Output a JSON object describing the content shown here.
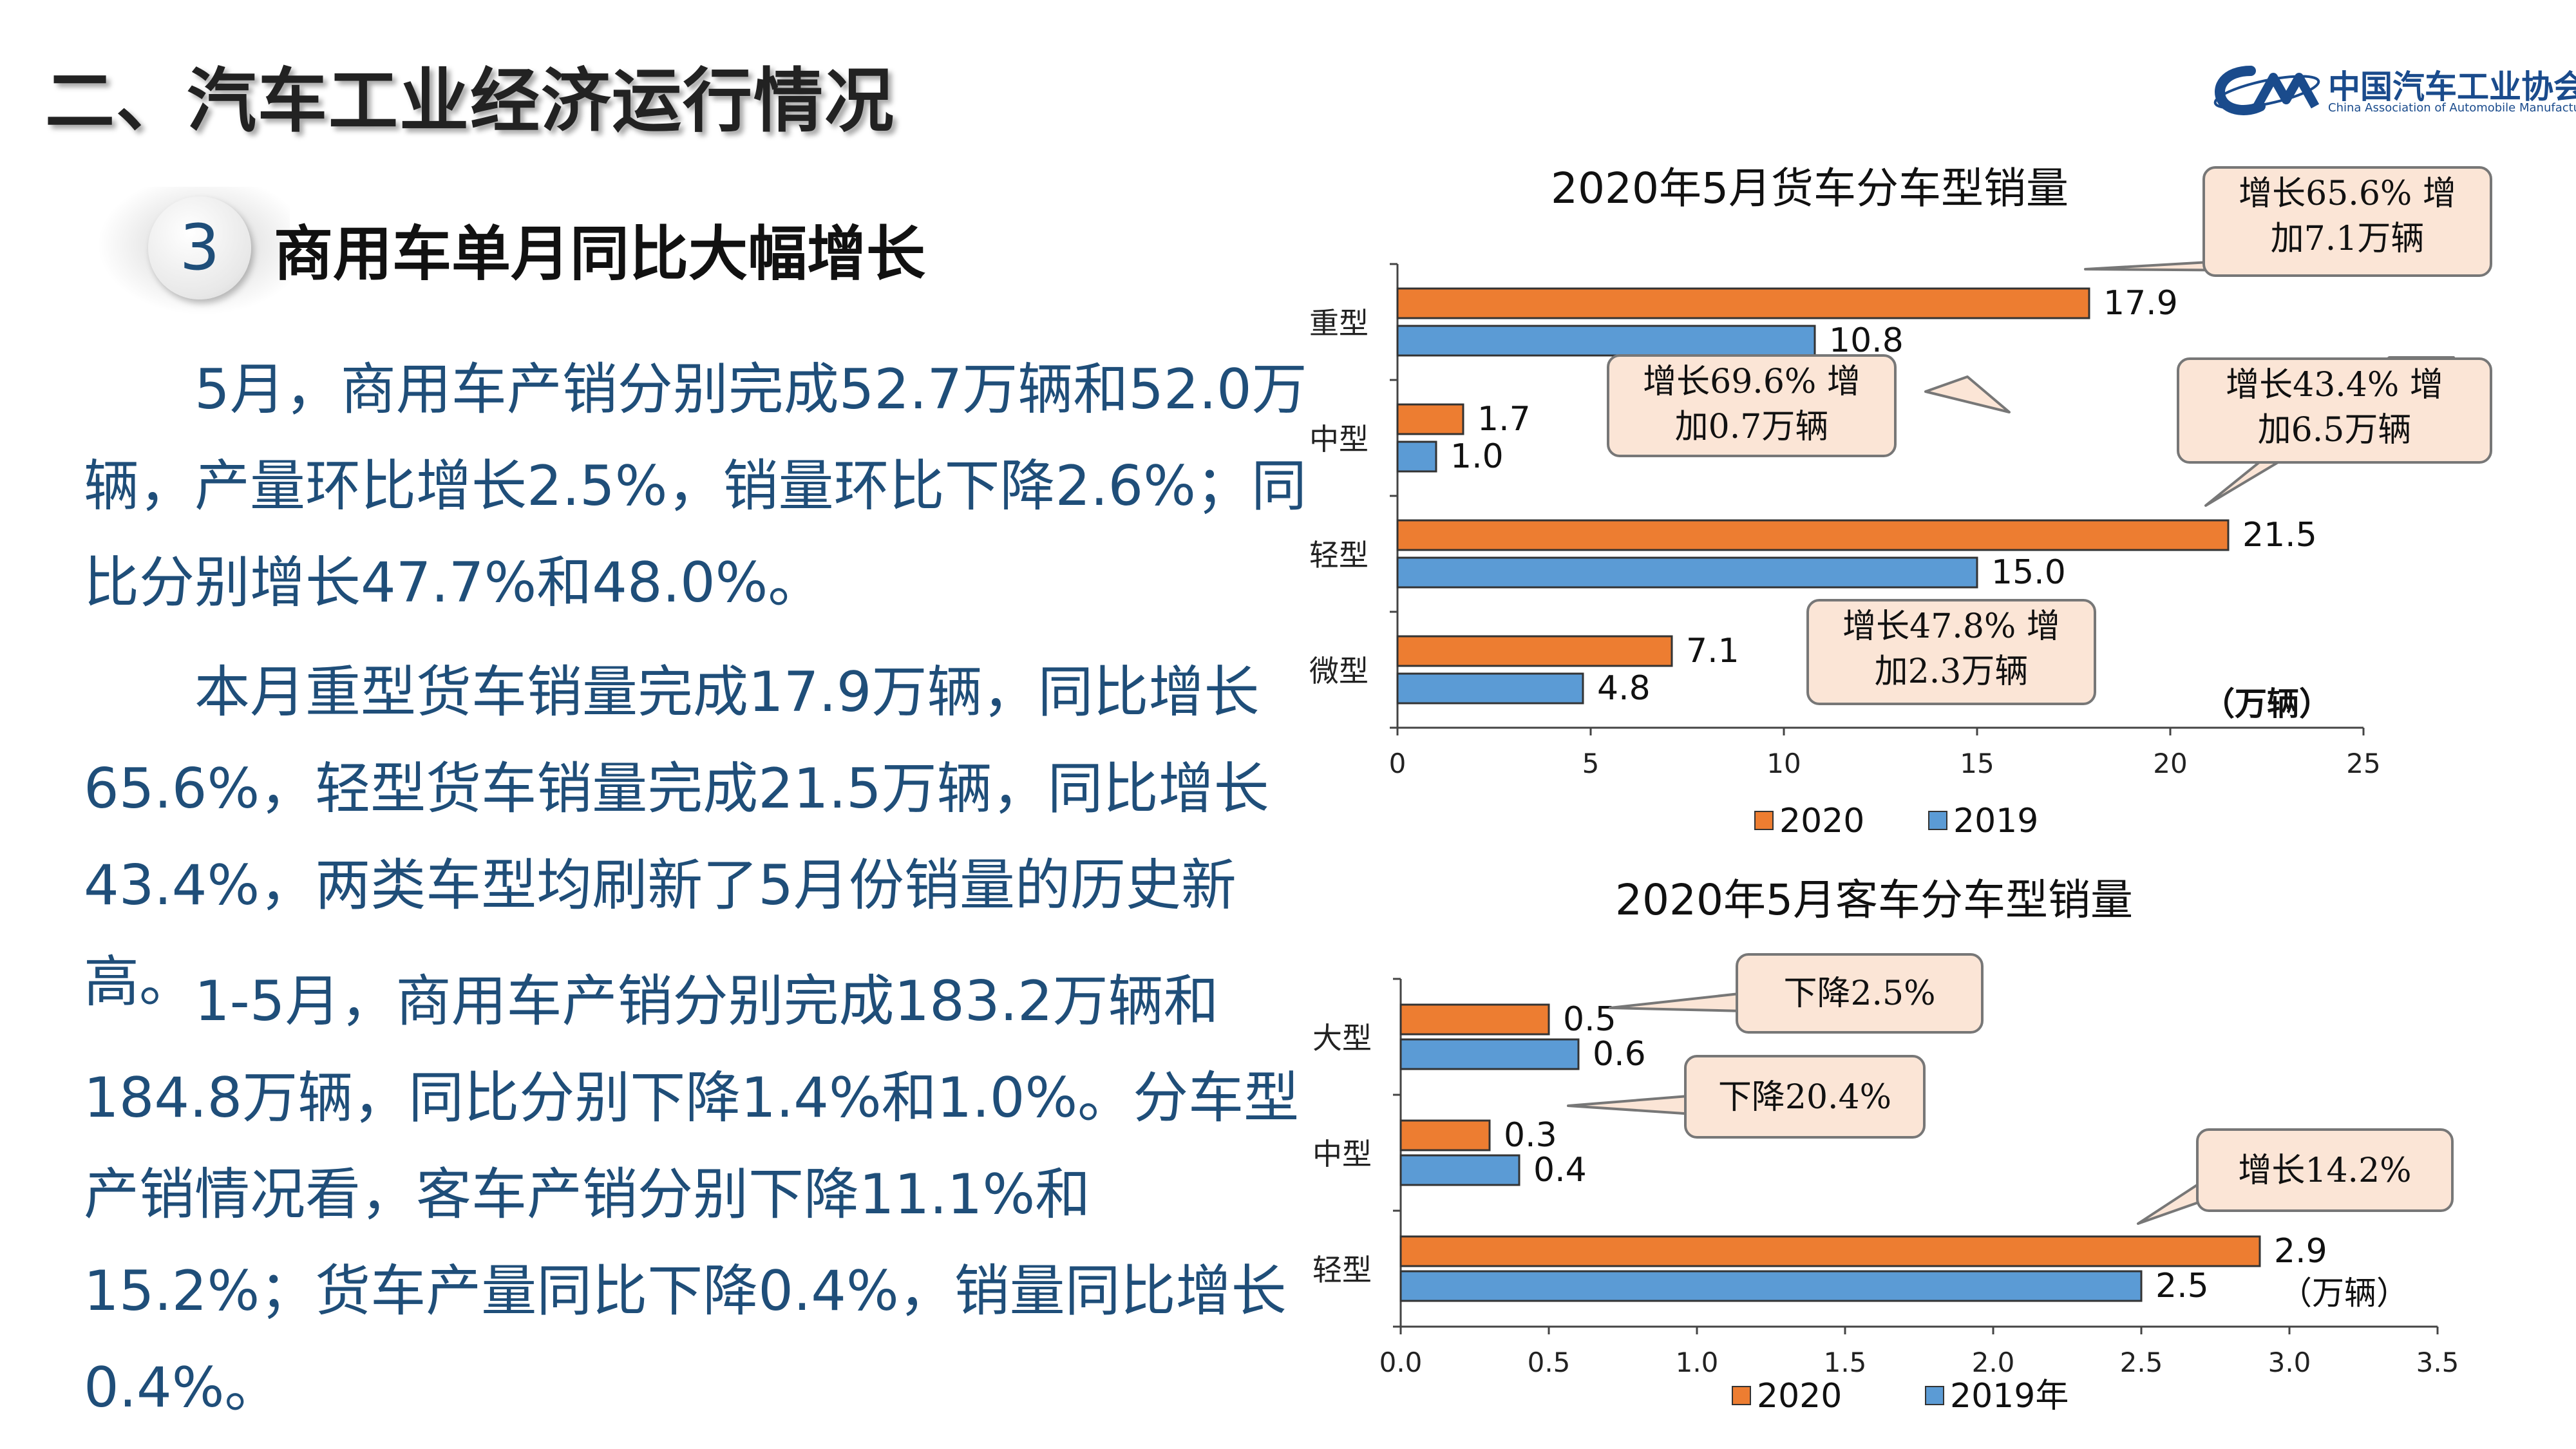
{
  "header": {
    "title": "二、汽车工业经济运行情况",
    "logo_cn": "中国汽车工业协会",
    "logo_en": "China Association of Automobile Manufacturers"
  },
  "section": {
    "number": "3",
    "title": "商用车单月同比大幅增长"
  },
  "paragraphs": [
    "5月，商用车产销分别完成52.7万辆和52.0万辆，产量环比增长2.5%，销量环比下降2.6%；同比分别增长47.7%和48.0%。",
    "本月重型货车销量完成17.9万辆，同比增长65.6%，轻型货车销量完成21.5万辆，同比增长43.4%，两类车型均刷新了5月份销量的历史新高。",
    "1-5月，商用车产销分别完成183.2万辆和184.8万辆，同比分别下降1.4%和1.0%。分车型产销情况看，客车产销分别下降11.1%和15.2%；货车产量同比下降0.4%，销量同比增长0.4%。"
  ],
  "colors": {
    "s2020": "#ed7d31",
    "s2019": "#5b9bd5",
    "text_blue": "#1f4e79",
    "callout_bg": "#fbe5d6"
  },
  "chart_data": [
    {
      "type": "bar",
      "orientation": "horizontal",
      "title": "2020年5月货车分车型销量",
      "categories": [
        "重型",
        "中型",
        "轻型",
        "微型"
      ],
      "series": [
        {
          "name": "2020",
          "values": [
            17.9,
            1.7,
            21.5,
            7.1
          ],
          "labels": [
            "17.9",
            "1.7",
            "21.5",
            "7.1"
          ]
        },
        {
          "name": "2019",
          "values": [
            10.8,
            1.0,
            15.0,
            4.8
          ],
          "labels": [
            "10.8",
            "1.0",
            "15.0",
            "4.8"
          ]
        }
      ],
      "xlim": [
        0,
        25
      ],
      "xticks": [
        "0",
        "5",
        "10",
        "15",
        "20",
        "25"
      ],
      "unit_label": "（万辆）",
      "legend_position": "bottom",
      "annotations": [
        {
          "category": "重型",
          "text": [
            "增长65.6% 增",
            "加7.1万辆"
          ]
        },
        {
          "category": "中型",
          "text": [
            "增长69.6% 增",
            "加0.7万辆"
          ]
        },
        {
          "category": "轻型",
          "text": [
            "增长43.4% 增",
            "加6.5万辆"
          ]
        },
        {
          "category": "微型",
          "text": [
            "增长47.8% 增",
            "加2.3万辆"
          ]
        }
      ]
    },
    {
      "type": "bar",
      "orientation": "horizontal",
      "title": "2020年5月客车分车型销量",
      "categories": [
        "大型",
        "中型",
        "轻型"
      ],
      "series": [
        {
          "name": "2020",
          "values": [
            0.5,
            0.3,
            2.9
          ],
          "labels": [
            "0.5",
            "0.3",
            "2.9"
          ]
        },
        {
          "name": "2019年",
          "values": [
            0.6,
            0.4,
            2.5
          ],
          "labels": [
            "0.6",
            "0.4",
            "2.5"
          ]
        }
      ],
      "xlim": [
        0,
        3.5
      ],
      "xticks": [
        "0.0",
        "0.5",
        "1.0",
        "1.5",
        "2.0",
        "2.5",
        "3.0",
        "3.5"
      ],
      "unit_label": "（万辆）",
      "legend_position": "bottom",
      "annotations": [
        {
          "category": "大型",
          "text": [
            "下降2.5%"
          ]
        },
        {
          "category": "中型",
          "text": [
            "下降20.4%"
          ]
        },
        {
          "category": "轻型",
          "text": [
            "增长14.2%"
          ]
        }
      ]
    }
  ]
}
